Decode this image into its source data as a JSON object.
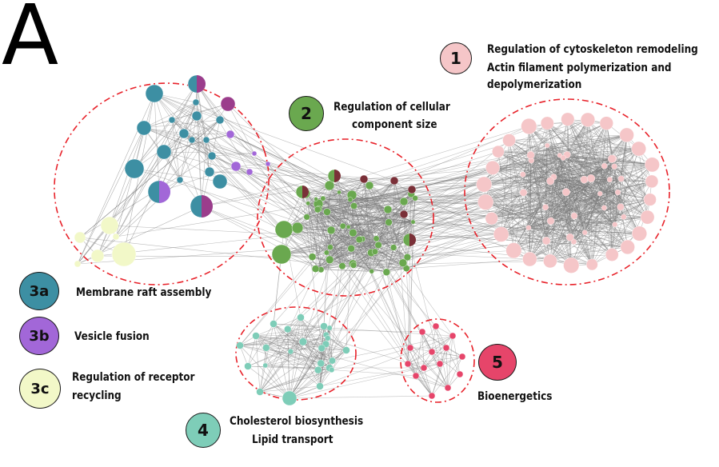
{
  "panel_letter": "A",
  "clusters": [
    {
      "id": "1",
      "name": "Regulation of cytoskeleton remodeling",
      "name2": "Actin filament polymerization and",
      "name3": "depolymerization",
      "color": "#f5c6c8"
    },
    {
      "id": "2",
      "name": "Regulation of cellular",
      "name2": "component size",
      "color": "#6aa84f"
    },
    {
      "id": "3a",
      "name": "Membrane raft assembly",
      "color": "#3d8fa3"
    },
    {
      "id": "3b",
      "name": "Vesicle fusion",
      "color": "#a267d8"
    },
    {
      "id": "3c",
      "name": "Regulation of receptor",
      "name2": "recycling",
      "color": "#f2f8c8"
    },
    {
      "id": "4",
      "name": "Cholesterol biosynthesis",
      "name2": "Lipid transport",
      "color": "#7ecdb8"
    },
    {
      "id": "5",
      "name": "Bioenergetics",
      "color": "#e6456a"
    }
  ],
  "colors": {
    "edge": "#7a7a7a",
    "boundary": "#e8222a",
    "mixed_dark": "#7a3038",
    "magenta": "#9b3d8c"
  }
}
